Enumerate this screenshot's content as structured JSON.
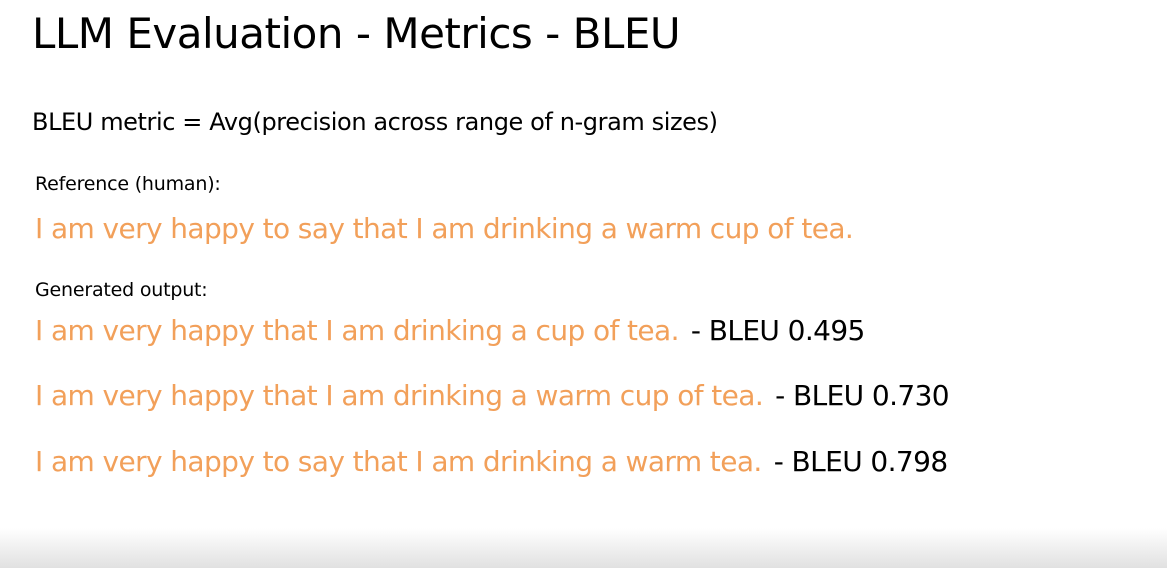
{
  "slide": {
    "title": "LLM Evaluation - Metrics - BLEU",
    "formula": "BLEU metric = Avg(precision across range of n-gram sizes)",
    "reference_label": "Reference (human):",
    "reference_text": "I am very happy to say that I am drinking a warm cup of tea.",
    "generated_label": "Generated output:",
    "outputs": [
      {
        "text": "I am very happy that I am drinking a cup of tea.",
        "score": "- BLEU 0.495"
      },
      {
        "text": "I am very happy that I am drinking a warm cup of tea.",
        "score": "- BLEU 0.730"
      },
      {
        "text": "I am very happy to say that I am drinking a warm tea.",
        "score": "- BLEU 0.798"
      }
    ]
  },
  "colors": {
    "accent_orange": "#f2a05a",
    "text": "#000000",
    "background": "#ffffff"
  }
}
